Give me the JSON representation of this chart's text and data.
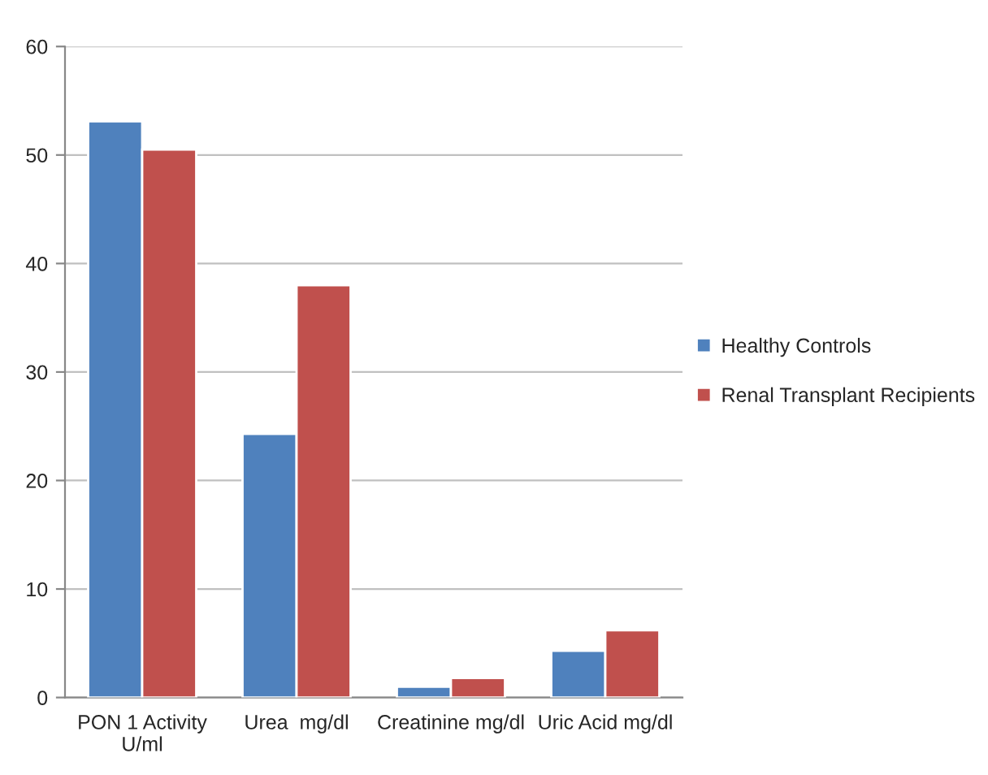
{
  "chart_data": {
    "type": "bar",
    "categories": [
      "PON 1 Activity\nU/ml",
      "Urea  mg/dl",
      "Creatinine mg/dl",
      "Uric Acid mg/dl"
    ],
    "series": [
      {
        "name": "Healthy Controls",
        "color": "#4f81bd",
        "values": [
          53.1,
          24.3,
          1.0,
          4.3
        ]
      },
      {
        "name": "Renal Transplant Recipients",
        "color": "#c0504d",
        "values": [
          50.5,
          38.0,
          1.8,
          6.2
        ]
      }
    ],
    "ylim": [
      0,
      60
    ],
    "yticks": [
      0,
      10,
      20,
      30,
      40,
      50,
      60
    ],
    "grid": "y",
    "legend": "right"
  }
}
